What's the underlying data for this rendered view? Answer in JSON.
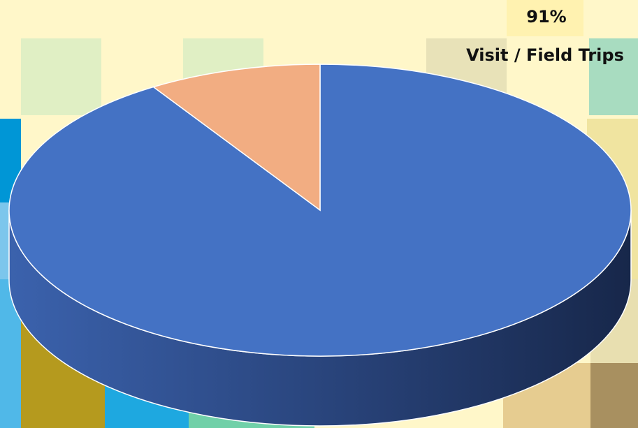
{
  "chart_data": {
    "type": "pie",
    "categories": [
      "Visit / Field Trips",
      null
    ],
    "values": [
      91,
      9
    ],
    "value_labels": [
      "91%",
      null
    ],
    "colors": [
      "#4472c4",
      "#f2ad82"
    ]
  }
}
